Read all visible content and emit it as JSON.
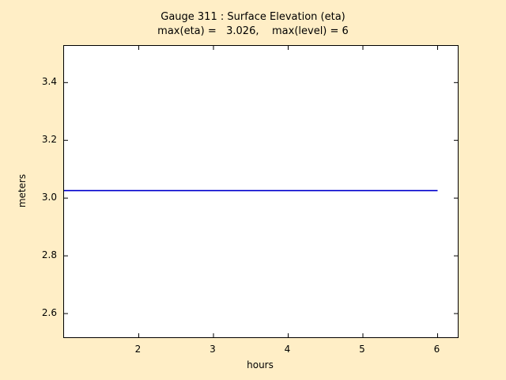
{
  "chart_data": {
    "type": "line",
    "title": "Gauge 311 : Surface Elevation (eta)",
    "subtitle": "max(eta) =   3.026,    max(level) = 6",
    "xlabel": "hours",
    "ylabel": "meters",
    "xlim": [
      1.0,
      6.27
    ],
    "ylim": [
      2.518,
      3.527
    ],
    "xticks": [
      2,
      3,
      4,
      5,
      6
    ],
    "xtick_labels": [
      "2",
      "3",
      "4",
      "5",
      "6"
    ],
    "yticks": [
      2.6,
      2.8,
      3.0,
      3.2,
      3.4
    ],
    "ytick_labels": [
      "2.6",
      "2.8",
      "3.0",
      "3.2",
      "3.4"
    ],
    "grid": false,
    "legend": null,
    "max_eta": 3.026,
    "max_level": 6,
    "series": [
      {
        "name": "eta",
        "color": "#0000CD",
        "line_width": 1.6,
        "x": [
          1.0,
          6.0
        ],
        "y": [
          3.026,
          3.026
        ]
      }
    ]
  },
  "colors": {
    "figure_bg": "#FFEEC6",
    "axes_bg": "#FFFFFF",
    "axes_border": "#000000",
    "line": "#0000CD",
    "text": "#000000"
  }
}
